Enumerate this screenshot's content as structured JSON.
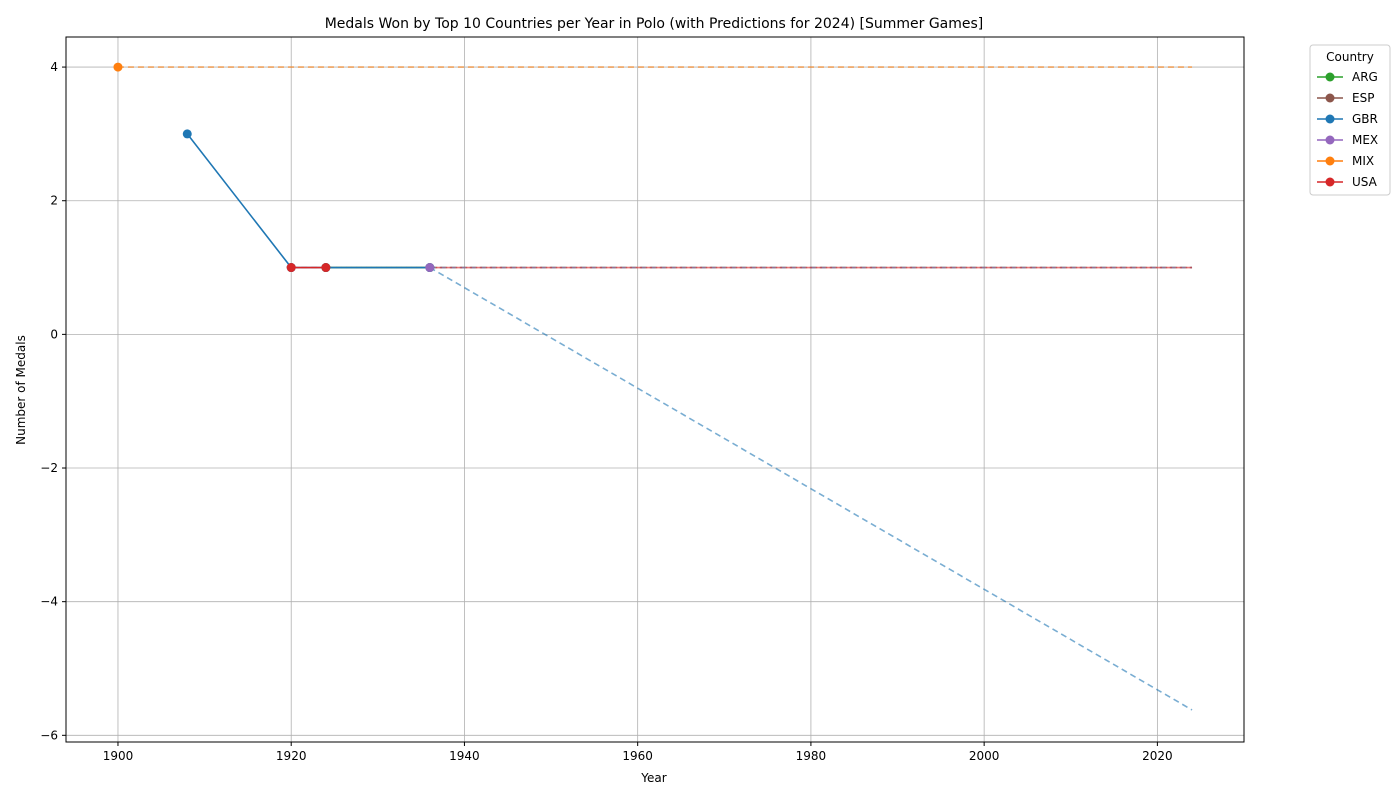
{
  "chart_data": {
    "type": "line",
    "title": "Medals Won by Top 10 Countries per Year in Polo (with Predictions for 2024) [Summer Games]",
    "xlabel": "Year",
    "ylabel": "Number of Medals",
    "xlim": [
      1894,
      2030
    ],
    "ylim": [
      -6.1,
      4.45
    ],
    "xticks": [
      1900,
      1920,
      1940,
      1960,
      1980,
      2000,
      2020
    ],
    "yticks": [
      -6,
      -4,
      -2,
      0,
      2,
      4
    ],
    "ytick_labels": [
      "−6",
      "−4",
      "−2",
      "0",
      "2",
      "4"
    ],
    "grid": true,
    "legend_title": "Country",
    "legend_position": "outside-top-right",
    "series": [
      {
        "name": "ARG",
        "color": "#2ca02c",
        "points": [
          [
            1924,
            1
          ],
          [
            1936,
            1
          ]
        ],
        "prediction": [
          [
            1936,
            1
          ],
          [
            2024,
            1
          ]
        ]
      },
      {
        "name": "ESP",
        "color": "#8c564b",
        "points": [
          [
            1920,
            1
          ]
        ],
        "prediction": [
          [
            1920,
            1
          ],
          [
            2024,
            1
          ]
        ]
      },
      {
        "name": "GBR",
        "color": "#1f77b4",
        "points": [
          [
            1908,
            3
          ],
          [
            1920,
            1
          ],
          [
            1924,
            1
          ],
          [
            1936,
            1
          ]
        ],
        "prediction": [
          [
            1936,
            1
          ],
          [
            2024,
            -5.62
          ]
        ]
      },
      {
        "name": "MEX",
        "color": "#9467bd",
        "points": [
          [
            1936,
            1
          ]
        ],
        "prediction": [
          [
            1936,
            1
          ],
          [
            2024,
            1
          ]
        ]
      },
      {
        "name": "MIX",
        "color": "#ff7f0e",
        "points": [
          [
            1900,
            4
          ]
        ],
        "prediction": [
          [
            1900,
            4
          ],
          [
            2024,
            4
          ]
        ]
      },
      {
        "name": "USA",
        "color": "#d62728",
        "points": [
          [
            1920,
            1
          ],
          [
            1924,
            1
          ]
        ],
        "prediction": [
          [
            1924,
            1
          ],
          [
            2024,
            1
          ]
        ]
      }
    ]
  }
}
